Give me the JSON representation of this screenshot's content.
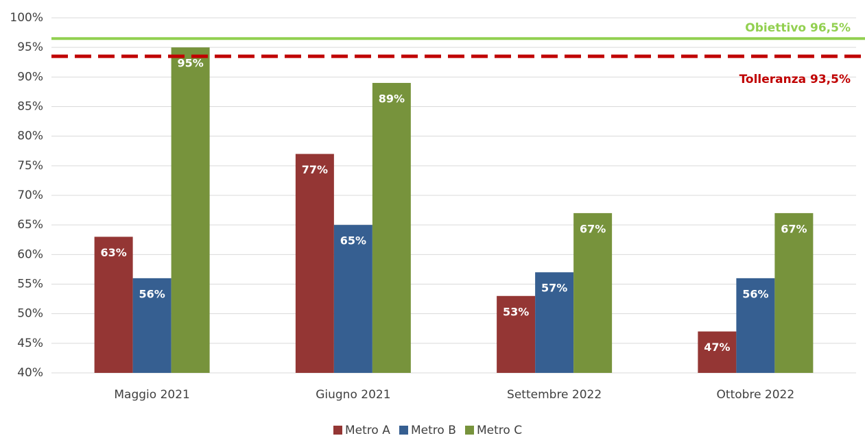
{
  "chart_data": {
    "type": "bar",
    "categories": [
      "Maggio 2021",
      "Giugno 2021",
      "Settembre 2022",
      "Ottobre 2022"
    ],
    "series": [
      {
        "name": "Metro A",
        "color": "#943634",
        "values": [
          63,
          77,
          53,
          47
        ],
        "value_labels": [
          "63%",
          "77%",
          "53%",
          "47%"
        ]
      },
      {
        "name": "Metro B",
        "color": "#365F91",
        "values": [
          56,
          65,
          57,
          56
        ],
        "value_labels": [
          "56%",
          "65%",
          "57%",
          "56%"
        ]
      },
      {
        "name": "Metro C",
        "color": "#77933C",
        "values": [
          95,
          89,
          67,
          67
        ],
        "value_labels": [
          "95%",
          "89%",
          "67%",
          "67%"
        ]
      }
    ],
    "reference_lines": [
      {
        "value": 96.5,
        "label": "Obiettivo 96,5%",
        "color": "#92D050",
        "style": "solid"
      },
      {
        "value": 93.5,
        "label": "Tolleranza 93,5%",
        "color": "#C00000",
        "style": "dashed"
      }
    ],
    "ylim": [
      40,
      100
    ],
    "yticks": [
      {
        "value": 40,
        "label": "40%"
      },
      {
        "value": 45,
        "label": "45%"
      },
      {
        "value": 50,
        "label": "50%"
      },
      {
        "value": 55,
        "label": "55%"
      },
      {
        "value": 60,
        "label": "60%"
      },
      {
        "value": 65,
        "label": "65%"
      },
      {
        "value": 70,
        "label": "70%"
      },
      {
        "value": 75,
        "label": "75%"
      },
      {
        "value": 80,
        "label": "80%"
      },
      {
        "value": 85,
        "label": "85%"
      },
      {
        "value": 90,
        "label": "90%"
      },
      {
        "value": 95,
        "label": "95%"
      },
      {
        "value": 100,
        "label": "100%"
      }
    ],
    "grid": true,
    "legend": "bottom"
  }
}
